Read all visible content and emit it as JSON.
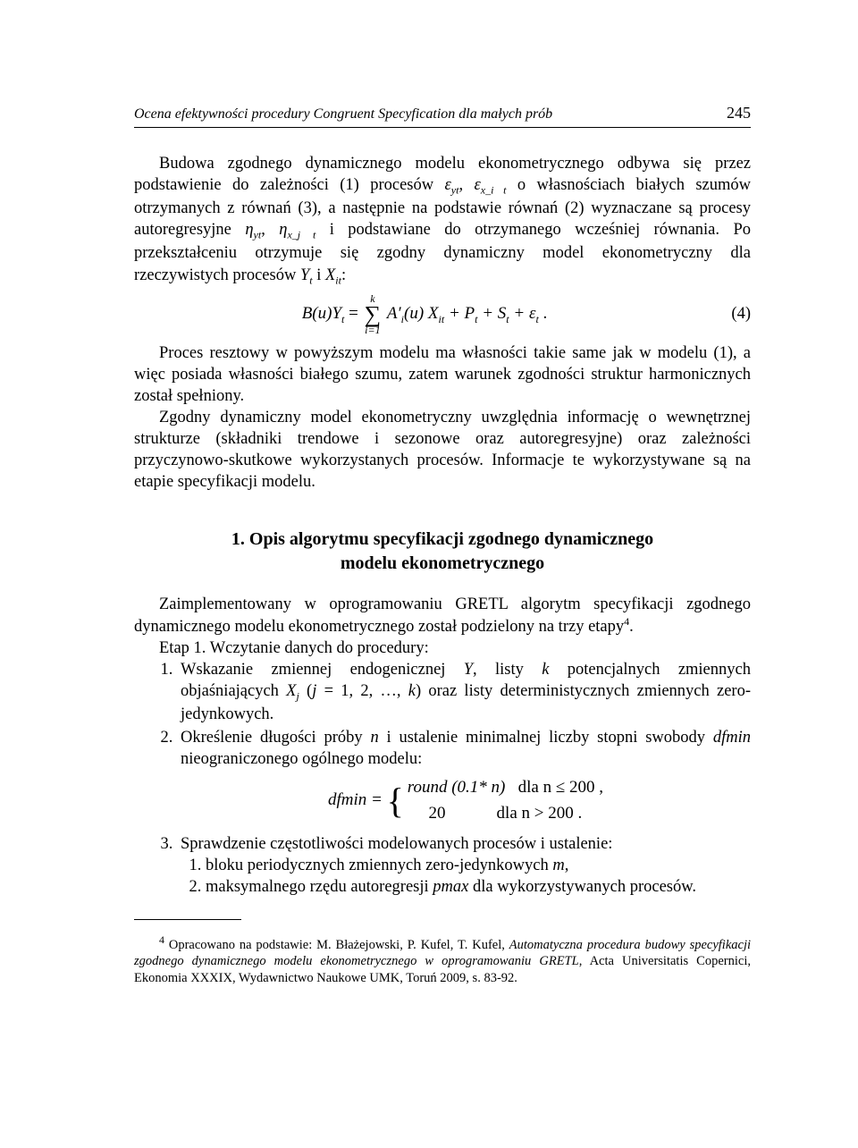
{
  "running_head": {
    "title": "Ocena efektywności procedury Congruent Specyfication dla małych prób",
    "page_number": "245"
  },
  "paragraphs": {
    "p1_a": "Budowa zgodnego dynamicznego modelu ekonometrycznego odbywa się przez podstawienie do zależności (1) procesów ",
    "p1_b": " o własnościach białych szumów otrzymanych z równań (3), a następnie na podstawie równań (2) wyznaczane są procesy autoregresyjne ",
    "p1_c": " i podstawiane do otrzymanego wcześniej równania. Po przekształceniu otrzymuje się zgodny dynamiczny model ekonometryczny dla rzeczywistych procesów ",
    "p1_d": ":",
    "p2": "Proces resztowy w powyższym modelu ma własności takie same jak w modelu (1), a więc posiada własności białego szumu, zatem warunek zgodności struktur harmonicznych został spełniony.",
    "p3": "Zgodny dynamiczny model ekonometryczny uwzględnia informację o wewnętrznej strukturze (składniki trendowe i sezonowe oraz autoregresyjne) oraz zależności przyczynowo-skutkowe wykorzystanych procesów. Informacje te wykorzystywane są na etapie specyfikacji modelu."
  },
  "equation4": {
    "lhs": "B(u)Y",
    "lhs_sub": "t",
    "sum_top": "k",
    "sum_bot": "i=1",
    "rhs_a": "A′",
    "rhs_a_sub": "i",
    "rhs_b": "(u) X",
    "rhs_b_sub": "it",
    "rhs_c": " + P",
    "rhs_c_sub": "t",
    "rhs_d": " + S",
    "rhs_d_sub": "t",
    "rhs_e": " + ε",
    "rhs_e_sub": "t",
    "tail": " .",
    "number": "(4)"
  },
  "section_heading": {
    "line1": "1. Opis algorytmu specyfikacji zgodnego dynamicznego",
    "line2": "modelu ekonometrycznego"
  },
  "intro2": {
    "p4_a": "Zaimplementowany w oprogramowaniu GRETL algorytm specyfikacji zgodnego dynamicznego modelu ekonometrycznego został podzielony na trzy etapy",
    "p4_sup": "4",
    "p4_b": ".",
    "etap_label": "Etap 1. Wczytanie danych do procedury:"
  },
  "list": {
    "item1_a": "Wskazanie zmiennej endogenicznej ",
    "item1_b": ", listy ",
    "item1_c": " potencjalnych zmiennych objaśniających ",
    "item1_d": " (",
    "item1_e": " = 1, 2, …, ",
    "item1_f": ") oraz listy deterministycznych zmiennych zero-jedynkowych.",
    "item2_a": "Określenie długości próby ",
    "item2_b": " i ustalenie minimalnej liczby stopni swobody ",
    "item2_c": " nieograniczonego ogólnego modelu:",
    "item3": "Sprawdzenie częstotliwości modelowanych procesów i ustalenie:",
    "sub1_a": "bloku periodycznych zmiennych zero-jedynkowych ",
    "sub1_b": ",",
    "sub2_a": "maksymalnego rzędu autoregresji ",
    "sub2_b": " dla wykorzystywanych procesów."
  },
  "vars": {
    "eps_yt": "ε",
    "eps_yt_sub": "yt",
    "eps_xit": "ε",
    "eps_xit_sub": "x_i t",
    "eta_yt": "η",
    "eta_yt_sub": "yt",
    "eta_xjt": "η",
    "eta_xjt_sub": "x_j t",
    "Yt": "Y",
    "Yt_sub": "t",
    "Xit": "X",
    "Xit_sub": "it",
    "Y": "Y",
    "k": "k",
    "Xj": "X",
    "Xj_sub": "j",
    "j": "j",
    "n": "n",
    "dfmin": "dfmin",
    "m": "m",
    "pmax": "pmax"
  },
  "dfmin_eq": {
    "lhs": "dfmin = ",
    "case1_a": "round (0.1* n)",
    "case1_cond": "dla  n ≤ 200 ,",
    "case2_a": "20",
    "case2_cond": "dla  n > 200 ."
  },
  "footnote": {
    "marker": "4",
    "text_a": " Opracowano na podstawie: M. Błażejowski, P. Kufel, T. Kufel, ",
    "text_italic": "Automatyczna procedura budowy specyfikacji zgodnego dynamicznego modelu ekonometrycznego w oprogramowaniu GRETL",
    "text_b": ", Acta Universitatis Copernici, Ekonomia XXXIX, Wydawnictwo Naukowe UMK, Toruń 2009, s. 83-92."
  }
}
